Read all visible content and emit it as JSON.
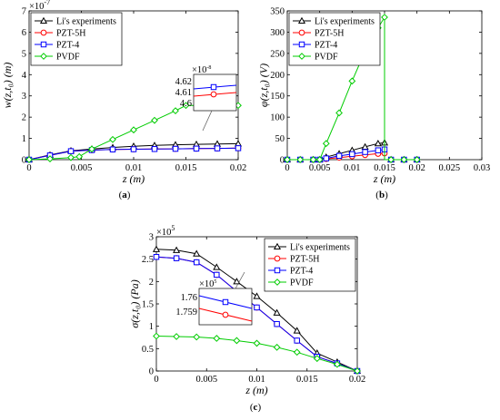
{
  "legend_labels": [
    "Li's experiments",
    "PZT-5H",
    "PZT-4",
    "PVDF"
  ],
  "colors": {
    "Li's experiments": "#000000",
    "PZT-5H": "#ff0000",
    "PZT-4": "#0000ff",
    "PVDF": "#00cc00"
  },
  "panel_labels": [
    "(a)",
    "(b)",
    "(c)"
  ],
  "chart_data": [
    {
      "id": "a",
      "type": "line",
      "ylabel": "w(z,t₀) (m)",
      "xlabel": "z (m)",
      "x_ticks": [
        "0",
        "0.005",
        "0.01",
        "0.015",
        "0.02"
      ],
      "y_ticks": [
        "0",
        "1",
        "2",
        "3",
        "4",
        "5",
        "6",
        "7"
      ],
      "y_exponent": "×10",
      "y_exponent_power": "-7",
      "xlim": [
        0,
        0.02
      ],
      "ylim": [
        0,
        7
      ],
      "legend_placement": "top-left",
      "series": [
        {
          "name": "Li's experiments",
          "marker": "triangle",
          "x": [
            0,
            0.002,
            0.004,
            0.006,
            0.008,
            0.01,
            0.012,
            0.014,
            0.016,
            0.018,
            0.02
          ],
          "y": [
            0,
            0.22,
            0.42,
            0.5,
            0.57,
            0.63,
            0.67,
            0.7,
            0.72,
            0.74,
            0.75
          ]
        },
        {
          "name": "PZT-5H",
          "marker": "circle",
          "x": [
            0,
            0.002,
            0.004,
            0.006,
            0.008,
            0.01,
            0.012,
            0.014,
            0.016,
            0.018,
            0.02
          ],
          "y": [
            0,
            0.2,
            0.4,
            0.45,
            0.48,
            0.49,
            0.5,
            0.51,
            0.52,
            0.53,
            0.54
          ]
        },
        {
          "name": "PZT-4",
          "marker": "square",
          "x": [
            0,
            0.002,
            0.004,
            0.006,
            0.008,
            0.01,
            0.012,
            0.014,
            0.016,
            0.018,
            0.02
          ],
          "y": [
            0,
            0.2,
            0.4,
            0.45,
            0.48,
            0.49,
            0.5,
            0.51,
            0.52,
            0.53,
            0.54
          ]
        },
        {
          "name": "PVDF",
          "marker": "diamond",
          "x": [
            0,
            0.002,
            0.004,
            0.0048,
            0.006,
            0.008,
            0.01,
            0.012,
            0.014,
            0.015,
            0.016,
            0.018,
            0.02
          ],
          "y": [
            0,
            0.04,
            0.1,
            0.14,
            0.5,
            0.95,
            1.4,
            1.85,
            2.3,
            2.55,
            2.55,
            2.55,
            2.55
          ]
        }
      ],
      "inset": {
        "y_ticks": [
          "4.62",
          "4.61",
          "4.6"
        ],
        "exponent": "×10",
        "exponent_power": "-8"
      }
    },
    {
      "id": "b",
      "type": "line",
      "ylabel": "φ(z,t₀) (V)",
      "xlabel": "z (m)",
      "x_ticks": [
        "0",
        "0.005",
        "0.01",
        "0.015",
        "0.02",
        "0.025",
        "0.03"
      ],
      "y_ticks": [
        "0",
        "50",
        "100",
        "150",
        "200",
        "250",
        "300",
        "350"
      ],
      "xlim": [
        0,
        0.03
      ],
      "ylim": [
        0,
        350
      ],
      "legend_placement": "top-left",
      "series": [
        {
          "name": "Li's experiments",
          "marker": "triangle",
          "x": [
            0,
            0.002,
            0.004,
            0.005,
            0.006,
            0.008,
            0.01,
            0.012,
            0.014,
            0.015,
            0.015,
            0.016,
            0.018,
            0.02
          ],
          "y": [
            0,
            0,
            0,
            0,
            6,
            14,
            22,
            30,
            38,
            40,
            0,
            0,
            0,
            0
          ]
        },
        {
          "name": "PZT-5H",
          "marker": "circle",
          "x": [
            0,
            0.002,
            0.004,
            0.005,
            0.006,
            0.008,
            0.01,
            0.012,
            0.014,
            0.015,
            0.015,
            0.016,
            0.018,
            0.02
          ],
          "y": [
            0,
            0,
            0,
            0,
            2,
            5,
            8,
            11,
            14,
            15,
            0,
            0,
            0,
            0
          ]
        },
        {
          "name": "PZT-4",
          "marker": "square",
          "x": [
            0,
            0.002,
            0.004,
            0.005,
            0.006,
            0.008,
            0.01,
            0.012,
            0.014,
            0.015,
            0.015,
            0.016,
            0.018,
            0.02
          ],
          "y": [
            0,
            0,
            0,
            0,
            3,
            9,
            13,
            18,
            22,
            24,
            0,
            0,
            0,
            0
          ]
        },
        {
          "name": "PVDF",
          "marker": "diamond",
          "x": [
            0,
            0.002,
            0.004,
            0.005,
            0.006,
            0.008,
            0.01,
            0.012,
            0.014,
            0.015,
            0.015,
            0.016,
            0.018,
            0.02
          ],
          "y": [
            0,
            0,
            0,
            0,
            38,
            110,
            185,
            255,
            310,
            335,
            0,
            0,
            0,
            0
          ]
        }
      ]
    },
    {
      "id": "c",
      "type": "line",
      "ylabel": "σ(z,t₀) (Pa)",
      "xlabel": "z (m)",
      "x_ticks": [
        "0",
        "0.005",
        "0.01",
        "0.015",
        "0.02"
      ],
      "y_ticks": [
        "0",
        "0.5",
        "1",
        "1.5",
        "2",
        "2.5",
        "3"
      ],
      "y_exponent": "×10",
      "y_exponent_power": "5",
      "xlim": [
        0,
        0.02
      ],
      "ylim": [
        0,
        3
      ],
      "legend_placement": "top-right",
      "series": [
        {
          "name": "Li's experiments",
          "marker": "triangle",
          "x": [
            0,
            0.002,
            0.004,
            0.006,
            0.008,
            0.01,
            0.012,
            0.014,
            0.016,
            0.018,
            0.02
          ],
          "y": [
            2.72,
            2.7,
            2.62,
            2.32,
            2.0,
            1.67,
            1.3,
            0.9,
            0.4,
            0.2,
            0
          ]
        },
        {
          "name": "PZT-5H",
          "marker": "circle",
          "x": [
            0,
            0.002,
            0.004,
            0.006,
            0.008,
            0.01,
            0.012,
            0.014,
            0.016,
            0.018,
            0.02
          ],
          "y": [
            2.55,
            2.52,
            2.43,
            2.15,
            1.78,
            1.42,
            1.05,
            0.68,
            0.32,
            0.17,
            0
          ]
        },
        {
          "name": "PZT-4",
          "marker": "square",
          "x": [
            0,
            0.002,
            0.004,
            0.006,
            0.008,
            0.01,
            0.012,
            0.014,
            0.016,
            0.018,
            0.02
          ],
          "y": [
            2.55,
            2.52,
            2.43,
            2.15,
            1.78,
            1.42,
            1.05,
            0.68,
            0.32,
            0.17,
            0
          ]
        },
        {
          "name": "PVDF",
          "marker": "diamond",
          "x": [
            0,
            0.002,
            0.004,
            0.006,
            0.008,
            0.01,
            0.012,
            0.014,
            0.016,
            0.018,
            0.02
          ],
          "y": [
            0.78,
            0.77,
            0.76,
            0.73,
            0.68,
            0.62,
            0.53,
            0.42,
            0.28,
            0.15,
            0
          ]
        }
      ],
      "inset": {
        "y_ticks": [
          "1.76",
          "1.759"
        ],
        "exponent": "×10",
        "exponent_power": "5"
      }
    }
  ]
}
